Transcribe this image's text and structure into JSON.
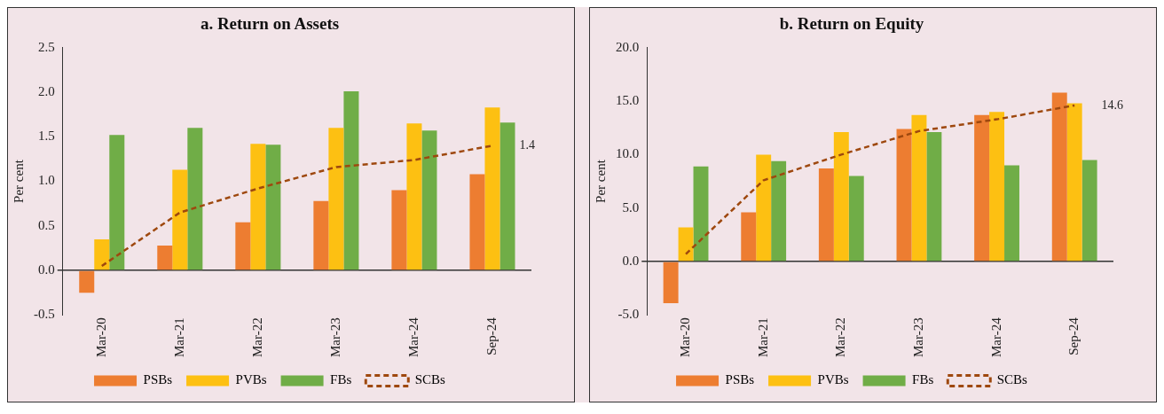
{
  "chart_data": [
    {
      "type": "bar",
      "title": "a. Return on Assets",
      "ylabel": "Per cent",
      "categories": [
        "Mar-20",
        "Mar-21",
        "Mar-22",
        "Mar-23",
        "Mar-24",
        "Sep-24"
      ],
      "series": [
        {
          "name": "PSBs",
          "color": "#ed7d31",
          "values": [
            -0.25,
            0.28,
            0.54,
            0.78,
            0.9,
            1.08
          ]
        },
        {
          "name": "PVBs",
          "color": "#fdc012",
          "values": [
            0.35,
            1.13,
            1.42,
            1.6,
            1.65,
            1.83
          ]
        },
        {
          "name": "FBs",
          "color": "#70ad47",
          "values": [
            1.52,
            1.6,
            1.41,
            2.01,
            1.57,
            1.66
          ]
        },
        {
          "name": "SCBs",
          "color": "#9e480e",
          "type": "line",
          "line_style": "dashed",
          "marker": "none",
          "values": [
            0.05,
            0.65,
            0.92,
            1.16,
            1.24,
            1.4
          ]
        }
      ],
      "ylim": [
        -0.5,
        2.5
      ],
      "yticks": [
        {
          "value": -0.5,
          "label": "-0.5"
        },
        {
          "value": 0,
          "label": "0.0"
        },
        {
          "value": 0.5,
          "label": "0.5"
        },
        {
          "value": 1,
          "label": "1.0"
        },
        {
          "value": 1.5,
          "label": "1.5"
        },
        {
          "value": 2,
          "label": "2.0"
        },
        {
          "value": 2.5,
          "label": "2.5"
        }
      ],
      "legend": "bottom",
      "annotations": [
        {
          "text": "1.4",
          "x": "Sep-24",
          "y": 1.4
        }
      ]
    },
    {
      "type": "bar",
      "title": "b. Return on Equity",
      "ylabel": "Per cent",
      "categories": [
        "Mar-20",
        "Mar-21",
        "Mar-22",
        "Mar-23",
        "Mar-24",
        "Sep-24"
      ],
      "series": [
        {
          "name": "PSBs",
          "color": "#ed7d31",
          "values": [
            -3.9,
            4.6,
            8.7,
            12.4,
            13.7,
            15.8
          ]
        },
        {
          "name": "PVBs",
          "color": "#fdc012",
          "values": [
            3.2,
            10.0,
            12.1,
            13.7,
            14.0,
            14.8
          ]
        },
        {
          "name": "FBs",
          "color": "#70ad47",
          "values": [
            8.9,
            9.4,
            8.0,
            12.1,
            9.0,
            9.5
          ]
        },
        {
          "name": "SCBs",
          "color": "#9e480e",
          "type": "line",
          "line_style": "dashed",
          "marker": "none",
          "values": [
            0.7,
            7.6,
            10.0,
            12.2,
            13.3,
            14.6
          ]
        }
      ],
      "ylim": [
        -5,
        20
      ],
      "yticks": [
        {
          "value": -5,
          "label": "-5.0"
        },
        {
          "value": 0,
          "label": "0.0"
        },
        {
          "value": 5,
          "label": "5.0"
        },
        {
          "value": 10,
          "label": "10.0"
        },
        {
          "value": 15,
          "label": "15.0"
        },
        {
          "value": 20,
          "label": "20.0"
        }
      ],
      "legend": "bottom",
      "annotations": [
        {
          "text": "14.6",
          "x": "Sep-24",
          "y": 14.6
        }
      ]
    }
  ]
}
